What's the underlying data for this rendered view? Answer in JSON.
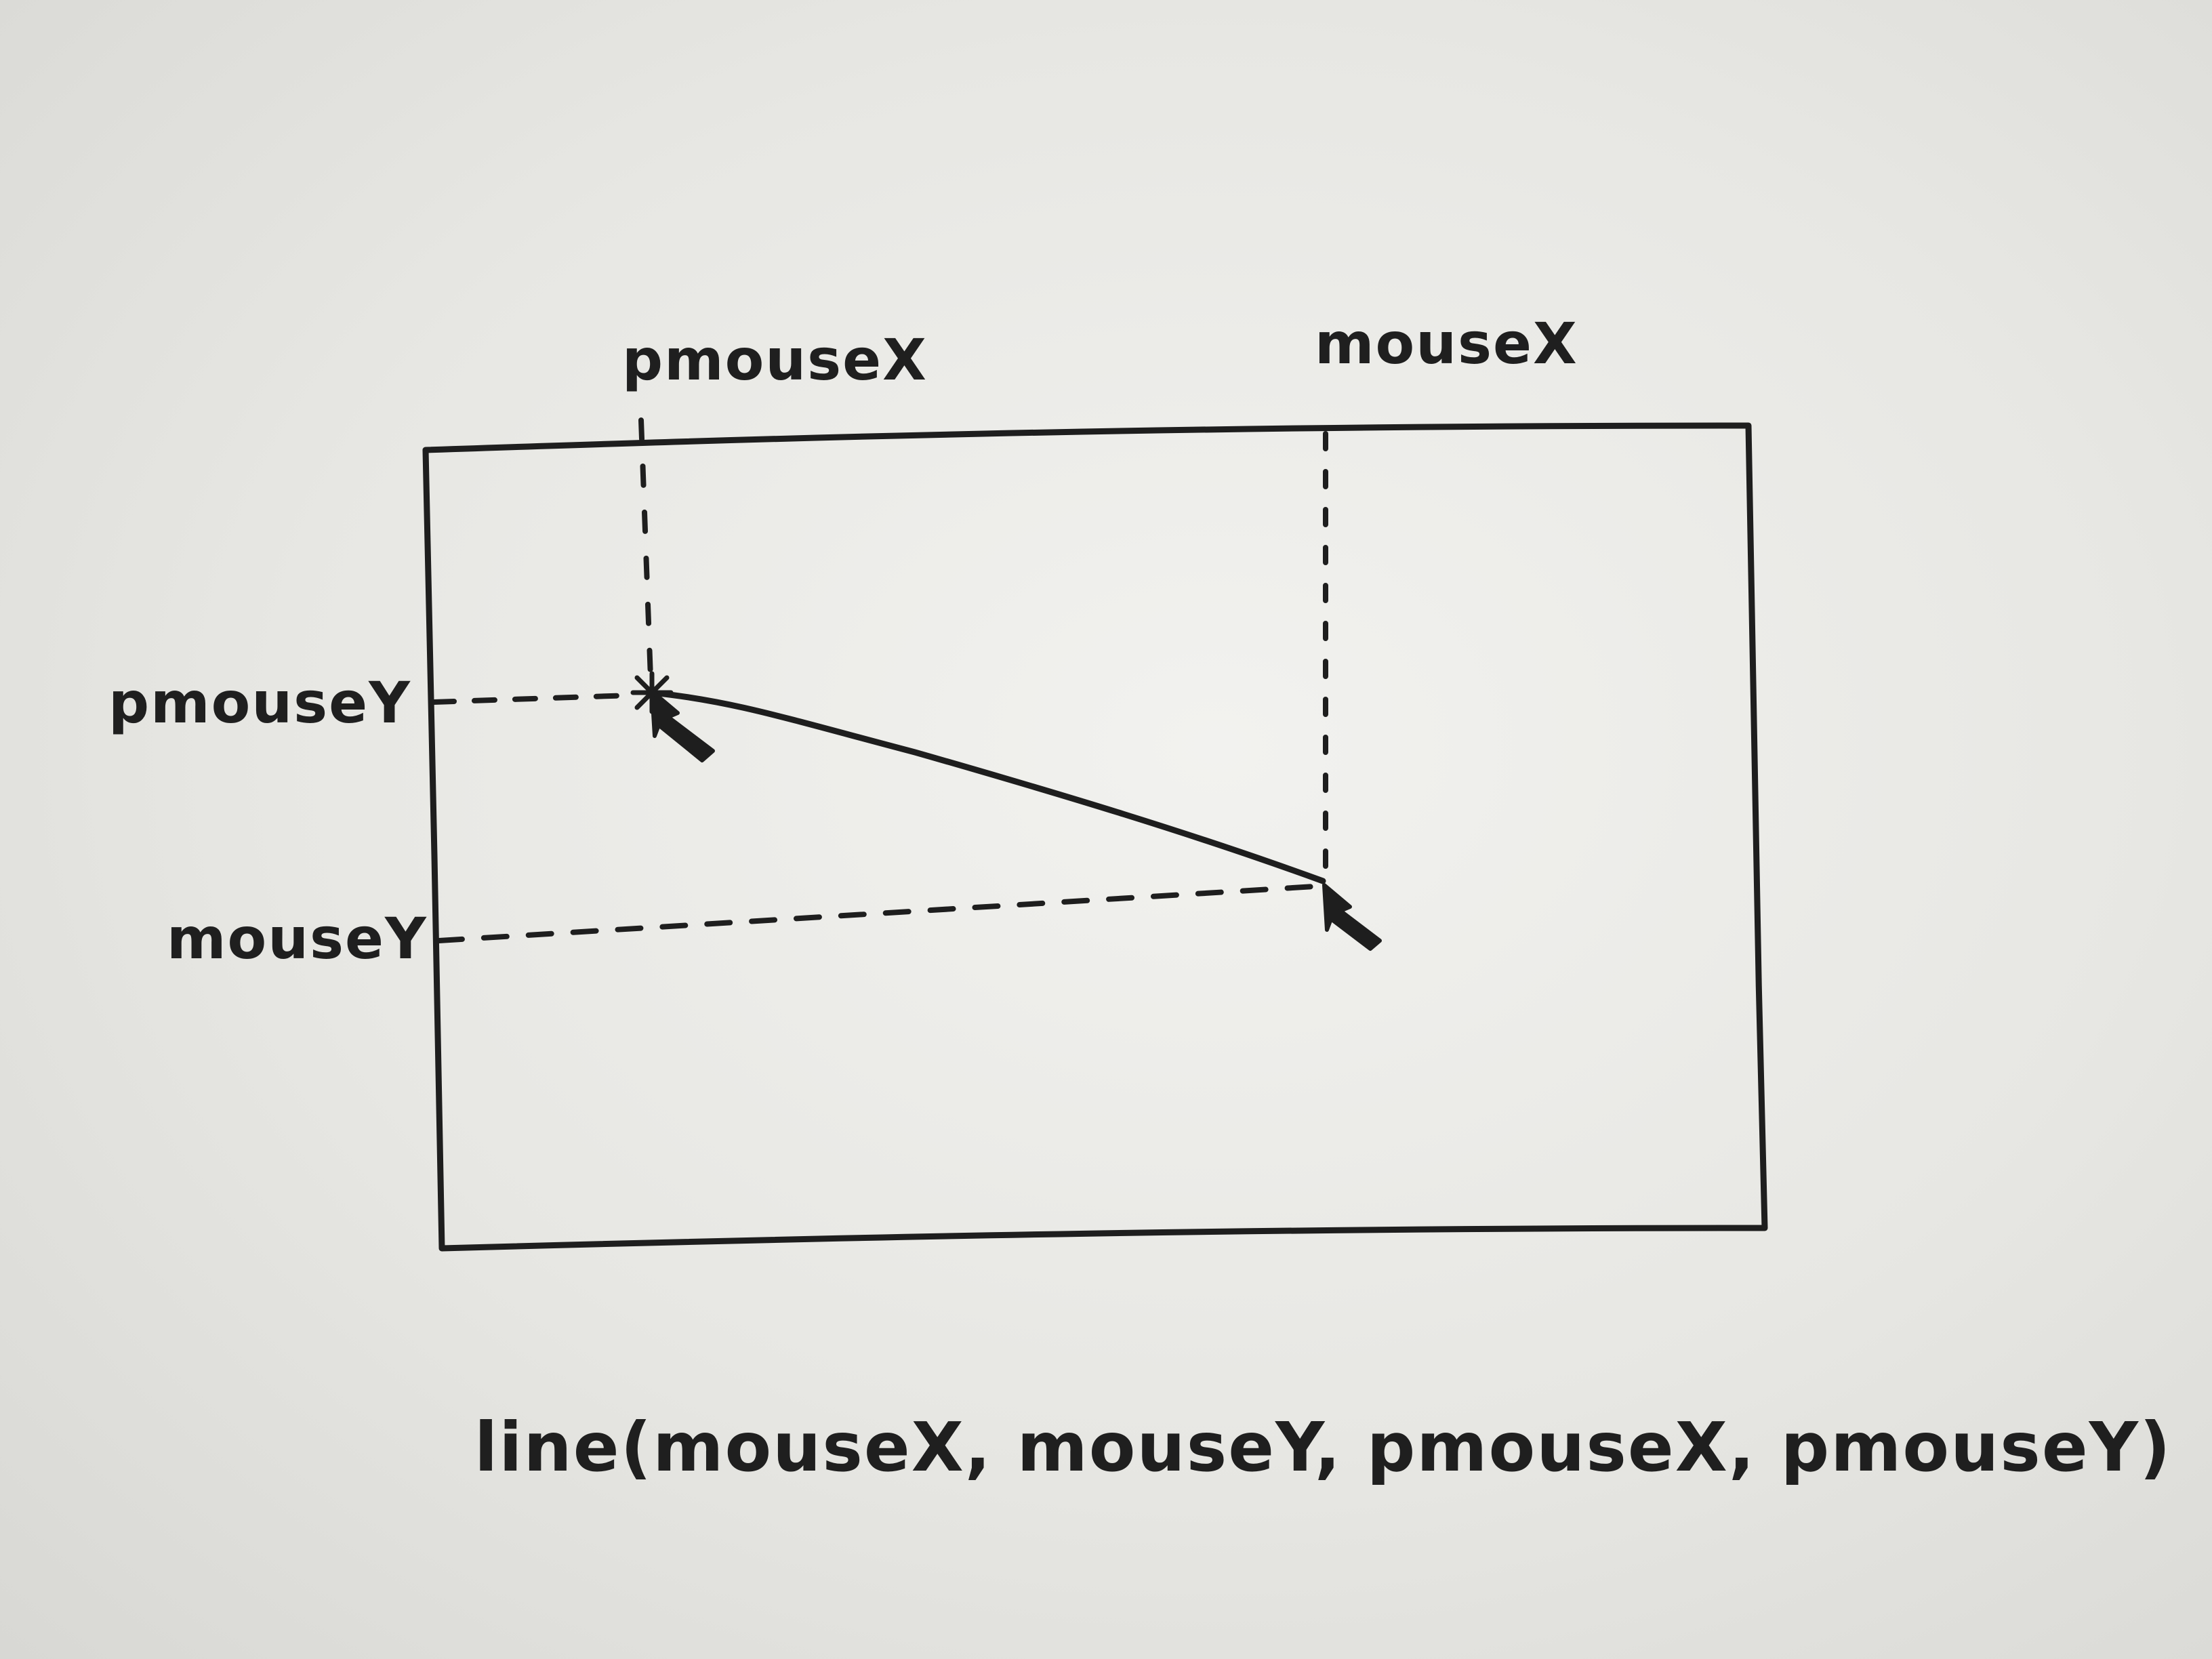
{
  "labels": {
    "pmouse_x": "pmouseX",
    "mouse_x": "mouseX",
    "pmouse_y": "pmouseY",
    "mouse_y": "mouseY"
  },
  "code_caption": "line(mouseX, mouseY, pmouseX, pmouseY)",
  "colors": {
    "ink": "#1e1e1e",
    "paper": "#eeeeea"
  },
  "icons": {
    "cursor_previous": "arrow-cursor-icon",
    "cursor_current": "arrow-cursor-icon",
    "previous_point_marker": "asterisk-icon"
  }
}
